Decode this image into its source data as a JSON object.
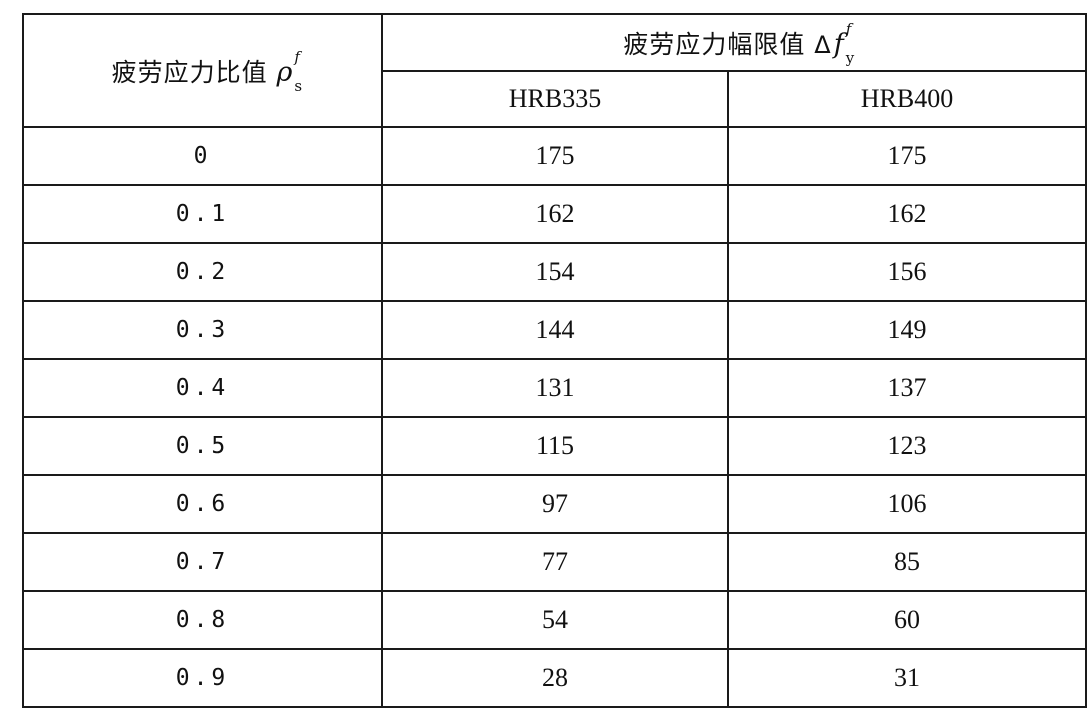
{
  "table": {
    "header": {
      "ratio_title": "疲劳应力比值",
      "ratio_symbol": "ρ",
      "ratio_sup": "f",
      "ratio_sub": "s",
      "range_title": "疲劳应力幅限值",
      "range_delta": "Δ",
      "range_symbol": "f",
      "range_sup": "f",
      "range_sub": "y",
      "grades": [
        "HRB335",
        "HRB400"
      ]
    },
    "rows": [
      {
        "ratio": "0",
        "hrb335": "175",
        "hrb400": "175"
      },
      {
        "ratio": "0.1",
        "hrb335": "162",
        "hrb400": "162"
      },
      {
        "ratio": "0.2",
        "hrb335": "154",
        "hrb400": "156"
      },
      {
        "ratio": "0.3",
        "hrb335": "144",
        "hrb400": "149"
      },
      {
        "ratio": "0.4",
        "hrb335": "131",
        "hrb400": "137"
      },
      {
        "ratio": "0.5",
        "hrb335": "115",
        "hrb400": "123"
      },
      {
        "ratio": "0.6",
        "hrb335": "97",
        "hrb400": "106"
      },
      {
        "ratio": "0.7",
        "hrb335": "77",
        "hrb400": "85"
      },
      {
        "ratio": "0.8",
        "hrb335": "54",
        "hrb400": "60"
      },
      {
        "ratio": "0.9",
        "hrb335": "28",
        "hrb400": "31"
      }
    ]
  }
}
